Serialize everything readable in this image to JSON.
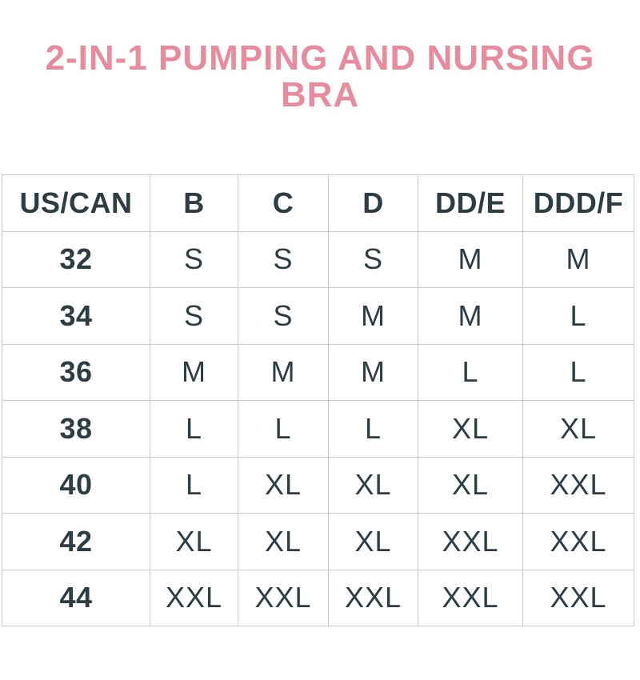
{
  "title": "2-IN-1 PUMPING AND NURSING BRA",
  "colors": {
    "title_pink": "#e98b9f",
    "text_dark": "#2e3d44",
    "border_gray": "#c9c9c9",
    "background": "#ffffff"
  },
  "chart_data": {
    "type": "table",
    "title": "2-IN-1 PUMPING AND NURSING BRA",
    "columns": [
      "US/CAN",
      "B",
      "C",
      "D",
      "DD/E",
      "DDD/F"
    ],
    "rows": [
      [
        "32",
        "S",
        "S",
        "S",
        "M",
        "M"
      ],
      [
        "34",
        "S",
        "S",
        "M",
        "M",
        "L"
      ],
      [
        "36",
        "M",
        "M",
        "M",
        "L",
        "L"
      ],
      [
        "38",
        "L",
        "L",
        "L",
        "XL",
        "XL"
      ],
      [
        "40",
        "L",
        "XL",
        "XL",
        "XL",
        "XXL"
      ],
      [
        "42",
        "XL",
        "XL",
        "XL",
        "XXL",
        "XXL"
      ],
      [
        "44",
        "XXL",
        "XXL",
        "XXL",
        "XXL",
        "XXL"
      ]
    ],
    "layout": {
      "grid": true,
      "header_row_bold": true,
      "first_column_bold": true
    }
  }
}
